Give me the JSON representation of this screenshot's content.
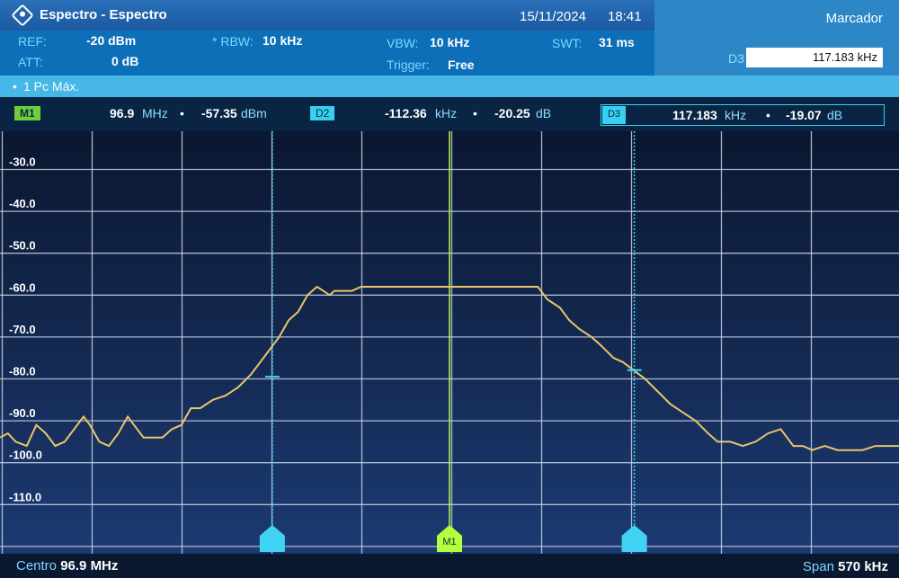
{
  "window": {
    "title": "Espectro - Espectro",
    "date": "15/11/2024",
    "time": "18:41"
  },
  "settings": {
    "ref_label": "REF:",
    "ref_value": "-20 dBm",
    "att_label": "ATT:",
    "att_value": "0 dB",
    "rbw_label": "* RBW:",
    "rbw_value": "10 kHz",
    "vbw_label": "VBW:",
    "vbw_value": "10 kHz",
    "trigger_label": "Trigger:",
    "trigger_value": "Free",
    "swt_label": "SWT:",
    "swt_value": "31 ms"
  },
  "side_panel": {
    "title": "Marcador",
    "d3_label": "D3",
    "d3_value": "117.183 kHz"
  },
  "trace": {
    "bullet": "•",
    "label": "1 Pc  Máx."
  },
  "markers": {
    "m1": {
      "label": "M1",
      "freq": "96.9",
      "freq_unit": "MHz",
      "level": "-57.35",
      "level_unit": "dBm"
    },
    "d2": {
      "label": "D2",
      "freq": "-112.36",
      "freq_unit": "kHz",
      "level": "-20.25",
      "level_unit": "dB"
    },
    "d3": {
      "label": "D3",
      "freq": "117.183",
      "freq_unit": "kHz",
      "level": "-19.07",
      "level_unit": "dB"
    },
    "sep": "•"
  },
  "footer": {
    "center_label": "Centro",
    "center_value": "96.9 MHz",
    "span_label": "Span",
    "span_value": "570 kHz"
  },
  "colors": {
    "trace": "#e8c56a",
    "m1_line": "#b4ff3c",
    "delta_line": "#3fd2f5",
    "grid": "#c8d2e6"
  },
  "chart_data": {
    "type": "line",
    "y_ticks": [
      "-30.0",
      "-40.0",
      "-50.0",
      "-60.0",
      "-70.0",
      "-80.0",
      "-90.0",
      "-100.0",
      "-110.0"
    ],
    "ylim": [
      -120,
      -20
    ],
    "xlim": [
      -285,
      285
    ],
    "x_unit": "kHz offset from center",
    "marker_positions": {
      "D2": -112.36,
      "M1": 0,
      "D3": 117.183
    },
    "series": [
      {
        "x": [
          -285,
          -280,
          -275,
          -268,
          -262,
          -256,
          -250,
          -244,
          -238,
          -232,
          -228,
          -222,
          -216,
          -210,
          -204,
          -200,
          -194,
          -188,
          -182,
          -176,
          -170,
          -164,
          -158,
          -150,
          -142,
          -134,
          -126,
          -120,
          -114,
          -108,
          -102,
          -96,
          -90,
          -84,
          -80,
          -76,
          -73,
          -70,
          -66,
          -62,
          -56,
          -40,
          -20,
          0,
          20,
          40,
          56,
          62,
          70,
          76,
          82,
          90,
          96,
          104,
          110,
          117,
          124,
          132,
          140,
          148,
          156,
          164,
          170,
          178,
          186,
          194,
          202,
          210,
          218,
          224,
          230,
          238,
          246,
          254,
          262,
          270,
          278,
          285
        ],
        "y": [
          -94,
          -93,
          -95,
          -96,
          -91,
          -93,
          -96,
          -95,
          -92,
          -89,
          -91,
          -95,
          -96,
          -93,
          -89,
          -91,
          -94,
          -94,
          -94,
          -92,
          -91,
          -87,
          -87,
          -85,
          -84,
          -82,
          -79,
          -76,
          -73,
          -70,
          -66,
          -64,
          -60,
          -58,
          -59,
          -60,
          -59,
          -59,
          -59,
          -59,
          -58,
          -58,
          -58,
          -58,
          -58,
          -58,
          -58,
          -61,
          -63,
          -66,
          -68,
          -70,
          -72,
          -75,
          -76,
          -78,
          -80,
          -83,
          -86,
          -88,
          -90,
          -93,
          -95,
          -95,
          -96,
          -95,
          -93,
          -92,
          -96,
          -96,
          -97,
          -96,
          -97,
          -97,
          -97,
          -96,
          -96,
          -96
        ]
      }
    ]
  }
}
